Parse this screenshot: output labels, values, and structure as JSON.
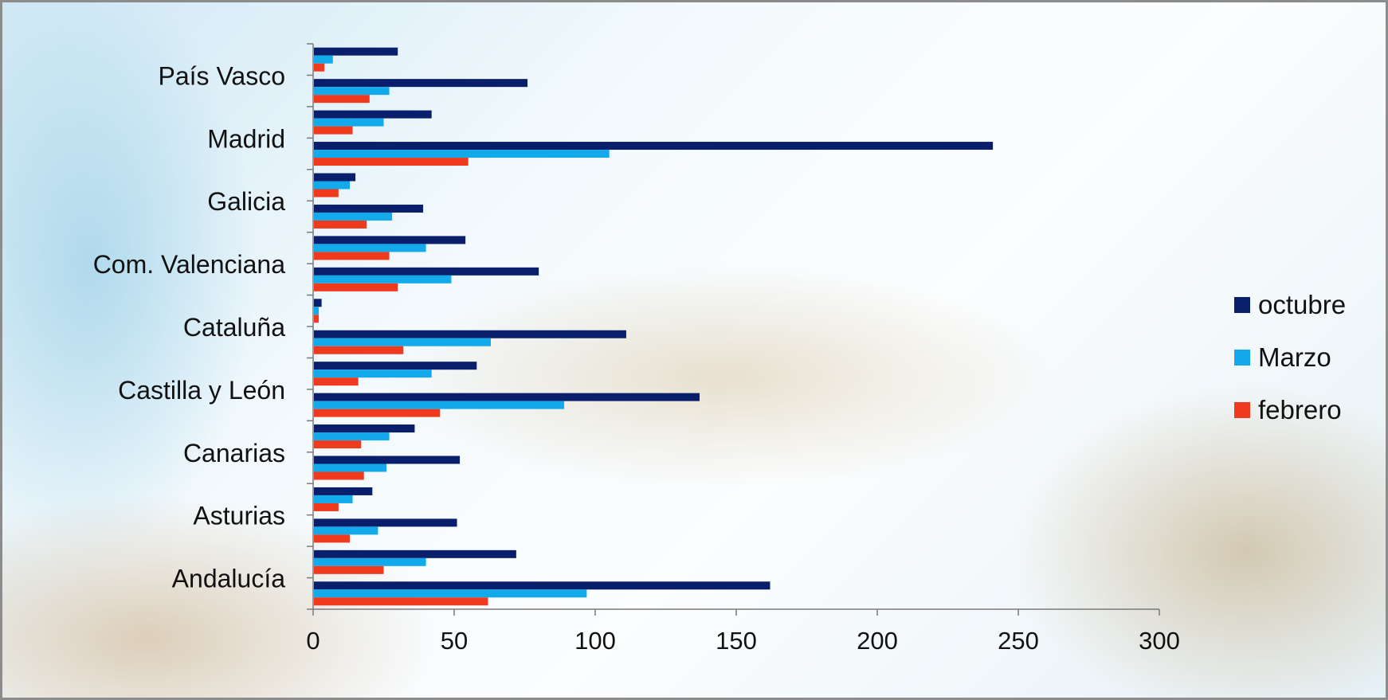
{
  "chart_data": {
    "type": "bar",
    "orientation": "horizontal",
    "x_ticks": [
      "0",
      "50",
      "100",
      "150",
      "200",
      "250",
      "300"
    ],
    "xlim": [
      0,
      300
    ],
    "grid": false,
    "legend_position": "right",
    "category_labels": [
      "Andalucía",
      "Asturias",
      "Canarias",
      "Castilla y León",
      "Cataluña",
      "Com. Valenciana",
      "Galicia",
      "Madrid",
      "País Vasco"
    ],
    "categories": [
      "Andalucía",
      "",
      "Asturias",
      "",
      "Canarias",
      "",
      "Castilla y León",
      "",
      "Cataluña",
      "",
      "Com. Valenciana",
      "",
      "Galicia",
      "",
      "Madrid",
      "",
      "País Vasco",
      ""
    ],
    "series": [
      {
        "name": "octubre",
        "color": "#0a1f6b",
        "values": [
          162,
          72,
          51,
          21,
          52,
          36,
          137,
          58,
          111,
          3,
          80,
          54,
          39,
          15,
          241,
          42,
          76,
          30
        ]
      },
      {
        "name": "Marzo",
        "color": "#12aaea",
        "values": [
          97,
          40,
          23,
          14,
          26,
          27,
          89,
          42,
          63,
          2,
          49,
          40,
          28,
          13,
          105,
          25,
          27,
          7
        ]
      },
      {
        "name": "febrero",
        "color": "#f03a1e",
        "values": [
          62,
          25,
          13,
          9,
          18,
          17,
          45,
          16,
          32,
          2,
          30,
          27,
          19,
          9,
          55,
          14,
          20,
          4
        ]
      }
    ],
    "legend": [
      "octubre",
      "Marzo",
      "febrero"
    ]
  }
}
